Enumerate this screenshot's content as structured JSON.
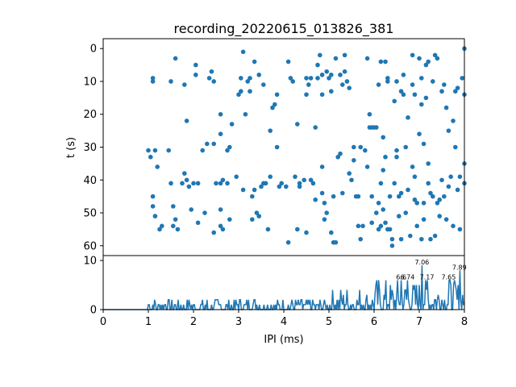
{
  "chart_data": [
    {
      "type": "scatter",
      "title": "recording_20220615_013826_381",
      "xlabel": "",
      "ylabel": "t (s)",
      "xlim": [
        0,
        8
      ],
      "ylim": [
        63,
        -3
      ],
      "y_inverted": true,
      "yticks": [
        "0",
        "10",
        "20",
        "30",
        "40",
        "50",
        "60"
      ],
      "color": "#1f77b4",
      "points": [
        [
          1.1,
          9
        ],
        [
          1.1,
          10
        ],
        [
          1.0,
          31
        ],
        [
          1.05,
          33
        ],
        [
          1.15,
          31
        ],
        [
          1.2,
          36
        ],
        [
          1.1,
          45
        ],
        [
          1.1,
          48
        ],
        [
          1.15,
          51
        ],
        [
          1.25,
          55
        ],
        [
          1.3,
          54
        ],
        [
          1.5,
          10
        ],
        [
          1.6,
          3
        ],
        [
          1.45,
          31
        ],
        [
          1.5,
          41
        ],
        [
          1.55,
          48
        ],
        [
          1.6,
          52
        ],
        [
          1.55,
          54
        ],
        [
          1.65,
          55
        ],
        [
          1.8,
          11
        ],
        [
          1.85,
          22
        ],
        [
          1.8,
          38
        ],
        [
          1.85,
          40
        ],
        [
          1.75,
          41
        ],
        [
          1.9,
          42
        ],
        [
          1.95,
          49
        ],
        [
          2.05,
          5
        ],
        [
          2.05,
          8
        ],
        [
          2.0,
          41
        ],
        [
          2.1,
          41
        ],
        [
          2.1,
          53
        ],
        [
          2.2,
          31
        ],
        [
          2.25,
          50
        ],
        [
          2.35,
          9
        ],
        [
          2.4,
          7
        ],
        [
          2.45,
          10
        ],
        [
          2.3,
          29
        ],
        [
          2.45,
          29
        ],
        [
          2.5,
          41
        ],
        [
          2.45,
          56
        ],
        [
          2.6,
          20
        ],
        [
          2.6,
          26
        ],
        [
          2.6,
          41
        ],
        [
          2.65,
          40
        ],
        [
          2.6,
          49
        ],
        [
          2.6,
          54
        ],
        [
          2.65,
          55
        ],
        [
          2.75,
          31
        ],
        [
          2.8,
          30
        ],
        [
          2.75,
          41
        ],
        [
          2.8,
          52
        ],
        [
          2.85,
          23
        ],
        [
          2.95,
          39
        ],
        [
          3.0,
          14
        ],
        [
          3.05,
          13
        ],
        [
          3.05,
          9
        ],
        [
          3.1,
          1
        ],
        [
          3.1,
          43
        ],
        [
          3.15,
          20
        ],
        [
          3.2,
          10
        ],
        [
          3.25,
          13
        ],
        [
          3.25,
          9
        ],
        [
          3.3,
          45
        ],
        [
          3.3,
          52
        ],
        [
          3.35,
          43
        ],
        [
          3.4,
          50
        ],
        [
          3.35,
          4
        ],
        [
          3.45,
          8
        ],
        [
          3.5,
          42
        ],
        [
          3.45,
          51
        ],
        [
          3.55,
          11
        ],
        [
          3.55,
          41
        ],
        [
          3.6,
          41
        ],
        [
          3.65,
          55
        ],
        [
          3.7,
          39
        ],
        [
          3.7,
          25
        ],
        [
          3.75,
          18
        ],
        [
          3.8,
          17
        ],
        [
          3.85,
          14
        ],
        [
          3.85,
          30
        ],
        [
          3.9,
          42
        ],
        [
          3.95,
          41
        ],
        [
          4.1,
          4
        ],
        [
          4.1,
          59
        ],
        [
          4.05,
          42
        ],
        [
          4.15,
          9
        ],
        [
          4.2,
          10
        ],
        [
          4.25,
          39
        ],
        [
          4.3,
          55
        ],
        [
          4.3,
          23
        ],
        [
          4.35,
          41
        ],
        [
          4.35,
          42
        ],
        [
          4.45,
          40
        ],
        [
          4.5,
          56
        ],
        [
          4.5,
          9
        ],
        [
          4.5,
          14
        ],
        [
          4.55,
          11
        ],
        [
          4.6,
          9
        ],
        [
          4.6,
          40
        ],
        [
          4.65,
          41
        ],
        [
          4.7,
          46
        ],
        [
          4.7,
          24
        ],
        [
          4.75,
          5
        ],
        [
          4.75,
          9
        ],
        [
          4.8,
          2
        ],
        [
          4.85,
          8
        ],
        [
          4.85,
          14
        ],
        [
          4.85,
          36
        ],
        [
          4.85,
          44
        ],
        [
          4.9,
          47
        ],
        [
          4.9,
          52
        ],
        [
          4.95,
          50
        ],
        [
          4.95,
          7
        ],
        [
          5.0,
          9
        ],
        [
          5.05,
          8
        ],
        [
          5.05,
          13
        ],
        [
          5.05,
          56
        ],
        [
          5.1,
          45
        ],
        [
          5.1,
          59
        ],
        [
          5.15,
          3
        ],
        [
          5.15,
          59
        ],
        [
          5.2,
          33
        ],
        [
          5.25,
          32
        ],
        [
          5.25,
          8
        ],
        [
          5.3,
          11
        ],
        [
          5.3,
          44
        ],
        [
          5.35,
          2
        ],
        [
          5.35,
          7
        ],
        [
          5.4,
          10
        ],
        [
          5.45,
          12
        ],
        [
          5.45,
          38
        ],
        [
          5.5,
          40
        ],
        [
          5.55,
          34
        ],
        [
          5.55,
          30
        ],
        [
          5.6,
          45
        ],
        [
          5.65,
          45
        ],
        [
          5.65,
          54
        ],
        [
          5.7,
          30
        ],
        [
          5.7,
          58
        ],
        [
          5.75,
          54
        ],
        [
          5.85,
          3
        ],
        [
          5.85,
          36
        ],
        [
          5.9,
          20
        ],
        [
          5.9,
          24
        ],
        [
          5.95,
          45
        ],
        [
          5.95,
          24
        ],
        [
          5.95,
          53
        ],
        [
          6.0,
          24
        ],
        [
          6.05,
          24
        ],
        [
          6.05,
          50
        ],
        [
          6.1,
          11
        ],
        [
          6.1,
          47
        ],
        [
          6.1,
          55
        ],
        [
          6.15,
          4
        ],
        [
          6.15,
          41
        ],
        [
          6.2,
          37
        ],
        [
          6.2,
          49
        ],
        [
          6.25,
          4
        ],
        [
          6.25,
          33
        ],
        [
          6.25,
          53
        ],
        [
          6.3,
          9
        ],
        [
          6.3,
          55
        ],
        [
          6.35,
          45
        ],
        [
          6.35,
          55
        ],
        [
          6.4,
          58
        ],
        [
          6.4,
          60
        ],
        [
          6.45,
          16
        ],
        [
          6.45,
          41
        ],
        [
          6.5,
          31
        ],
        [
          6.5,
          10
        ],
        [
          6.55,
          45
        ],
        [
          6.55,
          51
        ],
        [
          6.6,
          13
        ],
        [
          6.6,
          44
        ],
        [
          6.6,
          58
        ],
        [
          6.65,
          8
        ],
        [
          6.65,
          14
        ],
        [
          6.7,
          30
        ],
        [
          6.7,
          50
        ],
        [
          6.75,
          21
        ],
        [
          6.75,
          43
        ],
        [
          6.8,
          57
        ],
        [
          6.85,
          36
        ],
        [
          6.85,
          11
        ],
        [
          6.9,
          14
        ],
        [
          6.9,
          46
        ],
        [
          6.95,
          47
        ],
        [
          6.95,
          54
        ],
        [
          7.0,
          3
        ],
        [
          7.0,
          26
        ],
        [
          7.05,
          9
        ],
        [
          7.05,
          58
        ],
        [
          7.1,
          29
        ],
        [
          7.1,
          47
        ],
        [
          7.1,
          52
        ],
        [
          7.15,
          15
        ],
        [
          7.15,
          5
        ],
        [
          7.2,
          4
        ],
        [
          7.2,
          35
        ],
        [
          7.2,
          41
        ],
        [
          7.25,
          44
        ],
        [
          7.25,
          58
        ],
        [
          7.3,
          10
        ],
        [
          7.3,
          45
        ],
        [
          7.35,
          2
        ],
        [
          7.35,
          57
        ],
        [
          7.4,
          3
        ],
        [
          7.4,
          47
        ],
        [
          7.45,
          51
        ],
        [
          7.5,
          13
        ],
        [
          7.5,
          40
        ],
        [
          7.55,
          11
        ],
        [
          7.55,
          45
        ],
        [
          7.6,
          52
        ],
        [
          7.6,
          18
        ],
        [
          7.65,
          25
        ],
        [
          7.65,
          42
        ],
        [
          7.7,
          39
        ],
        [
          7.75,
          54
        ],
        [
          7.8,
          13
        ],
        [
          7.8,
          30
        ],
        [
          7.85,
          12
        ],
        [
          7.85,
          43
        ],
        [
          7.9,
          39
        ],
        [
          7.9,
          55
        ],
        [
          7.95,
          9
        ],
        [
          8.0,
          0
        ],
        [
          8.0,
          14
        ],
        [
          8.0,
          35
        ],
        [
          8.0,
          41
        ],
        [
          6.85,
          2
        ],
        [
          6.3,
          10
        ],
        [
          6.2,
          27
        ],
        [
          6.9,
          39
        ],
        [
          7.45,
          46
        ],
        [
          7.05,
          17
        ],
        [
          6.15,
          54
        ],
        [
          5.8,
          31
        ],
        [
          6.5,
          33
        ],
        [
          7.75,
          22
        ]
      ]
    },
    {
      "type": "line",
      "title": "",
      "xlabel": "IPI (ms)",
      "ylabel": "",
      "xlim": [
        0,
        8
      ],
      "ylim": [
        0,
        11
      ],
      "xticks": [
        "0",
        "1",
        "2",
        "3",
        "4",
        "5",
        "6",
        "7",
        "8"
      ],
      "yticks": [
        "0",
        "10"
      ],
      "color": "#1f77b4",
      "peak_labels": [
        {
          "x": 6.6,
          "y": 6,
          "text": "6.6"
        },
        {
          "x": 6.74,
          "y": 6,
          "text": "6.74"
        },
        {
          "x": 7.06,
          "y": 9,
          "text": "7.06"
        },
        {
          "x": 7.17,
          "y": 6,
          "text": "7.17"
        },
        {
          "x": 7.65,
          "y": 6,
          "text": "7.65"
        },
        {
          "x": 7.89,
          "y": 8,
          "text": "7.89"
        }
      ]
    }
  ]
}
